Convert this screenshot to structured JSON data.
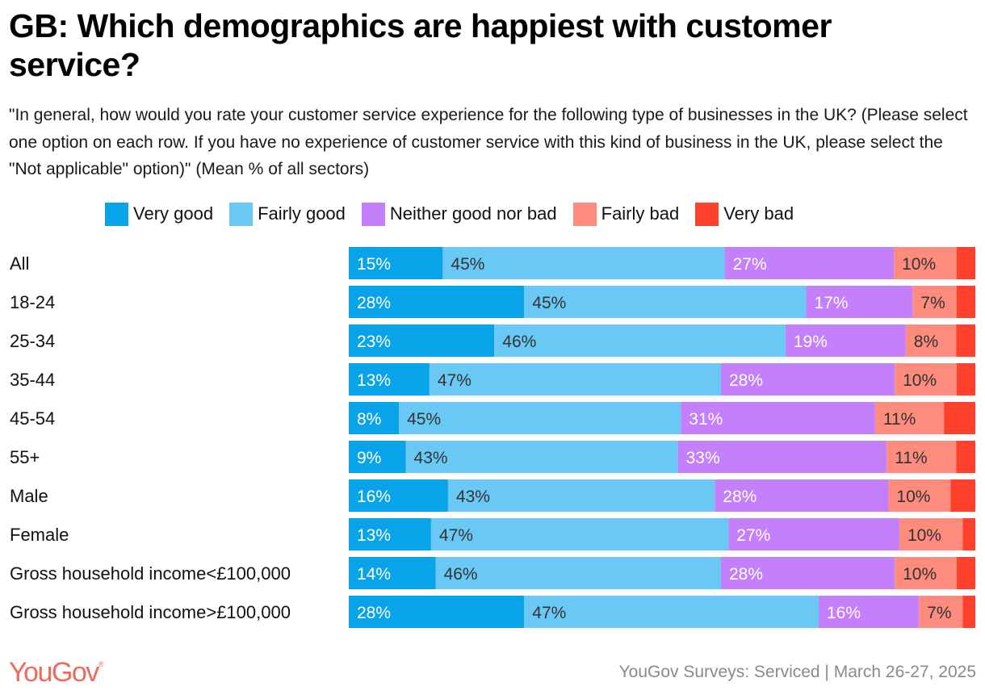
{
  "header": {
    "title": "GB: Which demographics are happiest with customer service?",
    "subtitle": "\"In general, how would you rate your customer service experience for the following type of businesses in the UK? (Please select one option on each row. If you have no experience of customer service with this kind of business in the UK, please select the \"Not applicable\" option)\" (Mean % of all sectors)"
  },
  "footer": {
    "logo": "YouGov",
    "logo_mark": "®",
    "source": "YouGov Surveys: Serviced | March 26-27, 2025"
  },
  "chart_data": {
    "type": "bar",
    "orientation": "horizontal",
    "stacked": true,
    "normalized": true,
    "title": "GB: Which demographics are happiest with customer service?",
    "xlabel": "",
    "ylabel": "",
    "value_suffix": "%",
    "legend_position": "top",
    "grid": false,
    "categories": [
      "All",
      "18-24",
      "25-34",
      "35-44",
      "45-54",
      "55+",
      "Male",
      "Female",
      "Gross household income<£100,000",
      "Gross household income>£100,000"
    ],
    "series": [
      {
        "name": "Very good",
        "color": "#08a3e8",
        "label_color": "#ffffff",
        "show_labels": true,
        "values": [
          15,
          28,
          23,
          13,
          8,
          9,
          16,
          13,
          14,
          28
        ]
      },
      {
        "name": "Fairly good",
        "color": "#6ac8f5",
        "label_color": "#333333",
        "show_labels": true,
        "values": [
          45,
          45,
          46,
          47,
          45,
          43,
          43,
          47,
          46,
          47
        ]
      },
      {
        "name": "Neither good nor bad",
        "color": "#c47ffa",
        "label_color": "#ffffff",
        "show_labels": true,
        "values": [
          27,
          17,
          19,
          28,
          31,
          33,
          28,
          27,
          28,
          16
        ]
      },
      {
        "name": "Fairly bad",
        "color": "#fd8b7e",
        "label_color": "#333333",
        "show_labels": true,
        "values": [
          10,
          7,
          8,
          10,
          11,
          11,
          10,
          10,
          10,
          7
        ]
      },
      {
        "name": "Very bad",
        "color": "#ff412c",
        "label_color": "#ffffff",
        "show_labels": false,
        "values": [
          3,
          3,
          3,
          3,
          5,
          3,
          4,
          2,
          3,
          2
        ]
      }
    ]
  }
}
